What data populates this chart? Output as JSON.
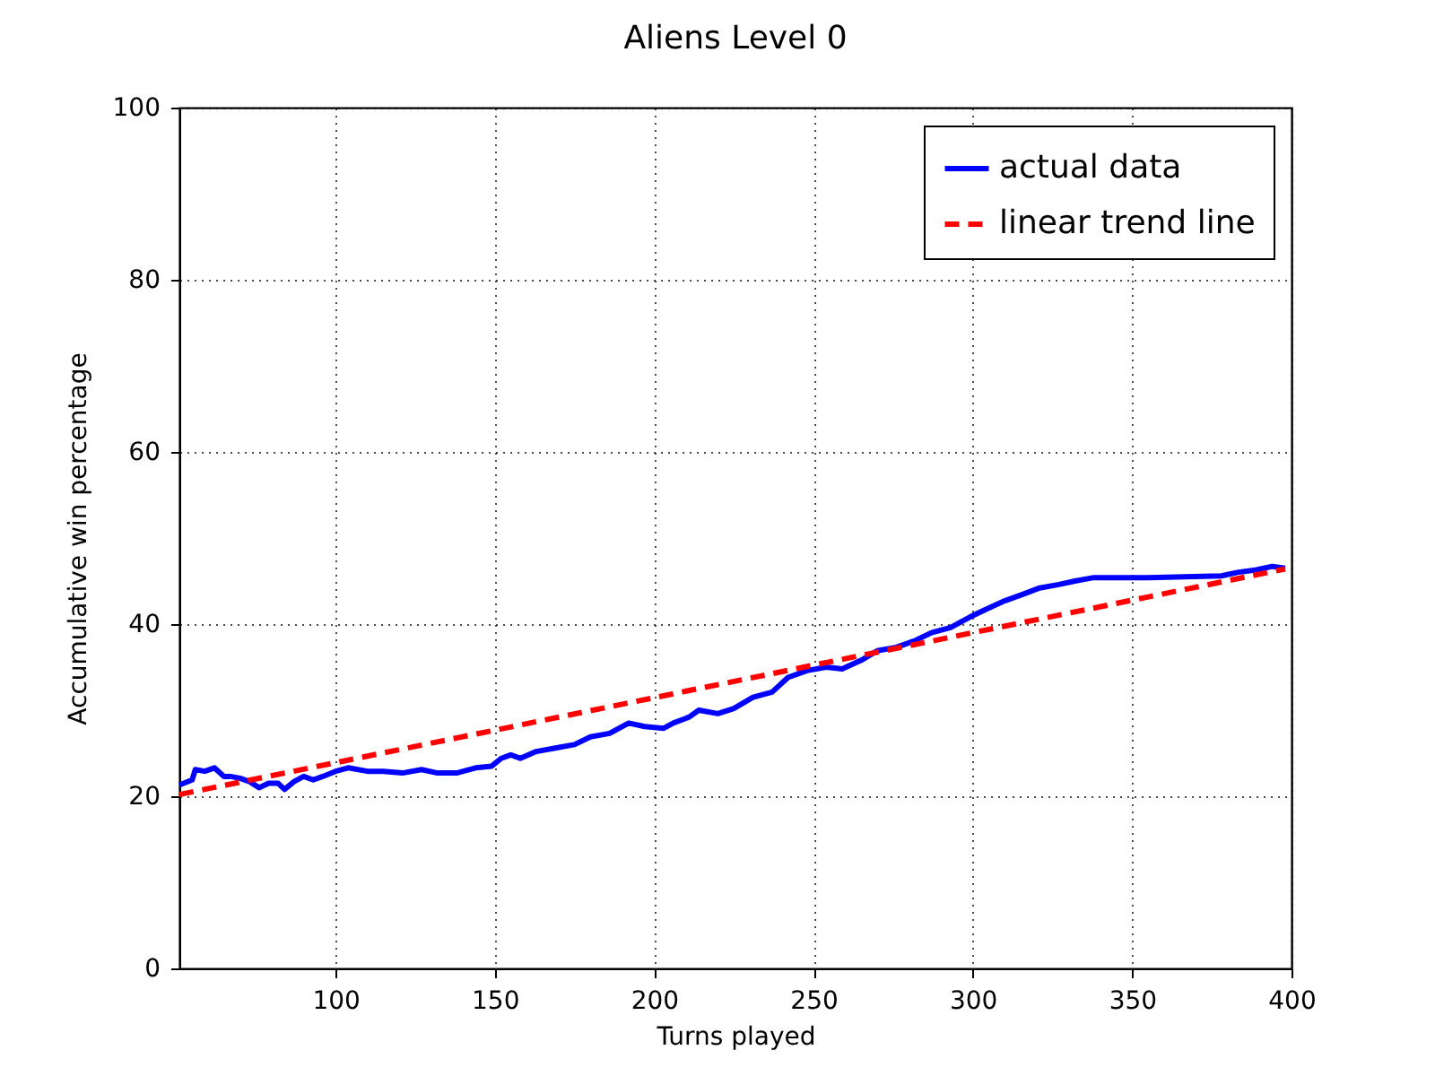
{
  "chart_data": {
    "type": "line",
    "title": "Aliens Level 0",
    "xlabel": "Turns played",
    "ylabel": "Accumulative win percentage",
    "xlim": [
      51,
      400
    ],
    "ylim": [
      0,
      100
    ],
    "xticks": [
      100,
      150,
      200,
      250,
      300,
      350,
      400
    ],
    "yticks": [
      0,
      20,
      40,
      60,
      80,
      100
    ],
    "grid": true,
    "legend": "top right",
    "series": [
      {
        "name": "actual data",
        "color": "#0000ff",
        "line_style": "solid",
        "x": [
          51,
          55,
          56,
          59,
          62,
          65,
          67,
          70,
          73,
          76,
          79,
          82,
          84,
          87,
          90,
          93,
          96,
          100,
          104,
          110,
          115,
          121,
          127,
          132,
          138,
          144,
          149,
          152,
          155,
          158,
          163,
          169,
          175,
          180,
          186,
          192,
          197,
          203,
          206,
          211,
          214,
          220,
          225,
          231,
          237,
          242,
          248,
          254,
          259,
          265,
          270,
          276,
          282,
          287,
          293,
          299,
          304,
          310,
          316,
          321,
          327,
          332,
          338,
          355,
          378,
          383,
          389,
          394,
          398
        ],
        "values": [
          21.3,
          21.9,
          23.1,
          22.9,
          23.3,
          22.3,
          22.3,
          22.1,
          21.7,
          21.0,
          21.5,
          21.5,
          20.8,
          21.7,
          22.3,
          21.9,
          22.3,
          22.9,
          23.3,
          22.9,
          22.9,
          22.7,
          23.1,
          22.7,
          22.7,
          23.3,
          23.5,
          24.4,
          24.8,
          24.4,
          25.2,
          25.6,
          26.0,
          26.9,
          27.3,
          28.5,
          28.1,
          27.9,
          28.5,
          29.2,
          30.0,
          29.6,
          30.2,
          31.5,
          32.1,
          33.8,
          34.6,
          35.0,
          34.8,
          35.8,
          36.9,
          37.3,
          38.1,
          39.0,
          39.6,
          40.8,
          41.7,
          42.7,
          43.5,
          44.2,
          44.6,
          45.0,
          45.4,
          45.4,
          45.6,
          46.0,
          46.3,
          46.7,
          46.5
        ]
      },
      {
        "name": "linear trend line",
        "type": "line",
        "color": "#ff0000",
        "line_style": "dashed",
        "x": [
          51,
          398
        ],
        "values": [
          20.2,
          46.4
        ]
      }
    ]
  }
}
